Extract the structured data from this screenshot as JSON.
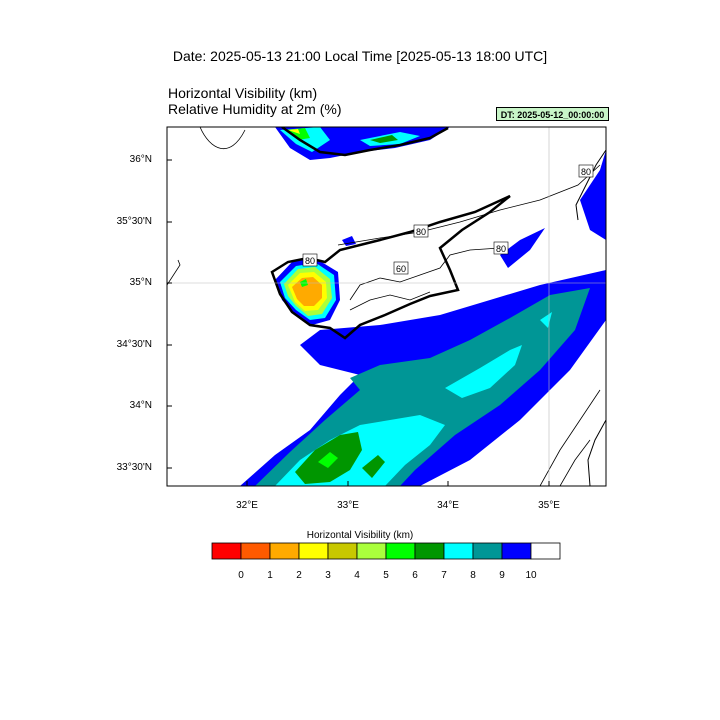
{
  "header": {
    "title": "Date: 2025-05-13  21:00 Local Time [2025-05-13  18:00 UTC]",
    "subtitle_line1": "Horizontal Visibility   (km)",
    "subtitle_line2": "Relative Humidity at 2m   (%)",
    "dt_badge": "DT: 2025-05-12_00:00:00"
  },
  "map": {
    "lat_labels": [
      "36°N",
      "35°30'N",
      "35°N",
      "34°30'N",
      "34°N",
      "33°30'N"
    ],
    "lon_labels": [
      "32°E",
      "33°E",
      "34°E",
      "35°E"
    ],
    "rh_contour_labels": [
      "80",
      "80",
      "80",
      "80",
      "60",
      "80"
    ]
  },
  "colorbar": {
    "title": "Horizontal Visibility  (km)",
    "labels": [
      "0",
      "1",
      "2",
      "3",
      "4",
      "5",
      "6",
      "7",
      "8",
      "9",
      "10"
    ],
    "colors": [
      "#ff0000",
      "#ff5a00",
      "#ffaa00",
      "#ffff00",
      "#c8c800",
      "#aaff3c",
      "#00ff00",
      "#009600",
      "#00ffff",
      "#009696",
      "#0000ff",
      "#ffffff"
    ]
  }
}
